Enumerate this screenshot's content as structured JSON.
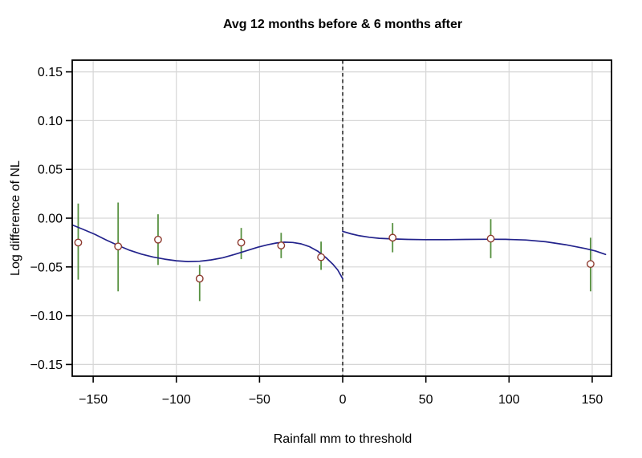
{
  "chart_data": {
    "type": "scatter",
    "title": "Avg 12 months before & 6 months after",
    "xlabel": "Rainfall mm to threshold",
    "ylabel": "Log difference of NL",
    "xlim": [
      -162.6,
      161.6
    ],
    "ylim": [
      -0.162,
      0.162
    ],
    "grid": true,
    "legend": "none",
    "x_ticks": [
      {
        "v": -150,
        "label": "−150"
      },
      {
        "v": -100,
        "label": "−100"
      },
      {
        "v": -50,
        "label": "−50"
      },
      {
        "v": 0,
        "label": "0"
      },
      {
        "v": 50,
        "label": "50"
      },
      {
        "v": 100,
        "label": "100"
      },
      {
        "v": 150,
        "label": "150"
      }
    ],
    "y_ticks": [
      {
        "v": 0.15,
        "label": "0.15"
      },
      {
        "v": 0.1,
        "label": "0.10"
      },
      {
        "v": 0.05,
        "label": "0.05"
      },
      {
        "v": 0.0,
        "label": "0.00"
      },
      {
        "v": -0.05,
        "label": "−0.05"
      },
      {
        "v": -0.1,
        "label": "−0.10"
      },
      {
        "v": -0.15,
        "label": "−0.15"
      }
    ],
    "threshold_x": 0,
    "points": [
      {
        "x": -159,
        "y": -0.025,
        "ci_low": -0.063,
        "ci_high": 0.015
      },
      {
        "x": -135,
        "y": -0.029,
        "ci_low": -0.075,
        "ci_high": 0.016
      },
      {
        "x": -111,
        "y": -0.022,
        "ci_low": -0.048,
        "ci_high": 0.004
      },
      {
        "x": -86,
        "y": -0.062,
        "ci_low": -0.085,
        "ci_high": -0.048
      },
      {
        "x": -61,
        "y": -0.025,
        "ci_low": -0.042,
        "ci_high": -0.01
      },
      {
        "x": -37,
        "y": -0.028,
        "ci_low": -0.041,
        "ci_high": -0.015
      },
      {
        "x": -13,
        "y": -0.04,
        "ci_low": -0.053,
        "ci_high": -0.024
      },
      {
        "x": 30,
        "y": -0.02,
        "ci_low": -0.035,
        "ci_high": -0.005
      },
      {
        "x": 89,
        "y": -0.021,
        "ci_low": -0.041,
        "ci_high": -0.001
      },
      {
        "x": 149,
        "y": -0.047,
        "ci_low": -0.075,
        "ci_high": -0.02
      }
    ],
    "fit_curves": [
      {
        "name": "fit-left-of-threshold",
        "xy": [
          [
            -162.5,
            -0.007
          ],
          [
            -156,
            -0.0115
          ],
          [
            -149,
            -0.0165
          ],
          [
            -142,
            -0.0225
          ],
          [
            -135,
            -0.028
          ],
          [
            -128,
            -0.033
          ],
          [
            -121,
            -0.0368
          ],
          [
            -114,
            -0.0398
          ],
          [
            -107,
            -0.042
          ],
          [
            -100,
            -0.0437
          ],
          [
            -93,
            -0.0445
          ],
          [
            -86,
            -0.0442
          ],
          [
            -79,
            -0.0428
          ],
          [
            -72,
            -0.0405
          ],
          [
            -65,
            -0.0372
          ],
          [
            -58,
            -0.0335
          ],
          [
            -51,
            -0.0298
          ],
          [
            -45,
            -0.0272
          ],
          [
            -40,
            -0.0255
          ],
          [
            -35,
            -0.0246
          ],
          [
            -30,
            -0.0249
          ],
          [
            -25,
            -0.0263
          ],
          [
            -20,
            -0.0292
          ],
          [
            -15,
            -0.0338
          ],
          [
            -10,
            -0.0405
          ],
          [
            -6,
            -0.047
          ],
          [
            -3,
            -0.053
          ],
          [
            0,
            -0.062
          ]
        ]
      },
      {
        "name": "fit-right-of-threshold",
        "xy": [
          [
            0,
            -0.0135
          ],
          [
            5,
            -0.016
          ],
          [
            10,
            -0.018
          ],
          [
            16,
            -0.0196
          ],
          [
            22,
            -0.0206
          ],
          [
            30,
            -0.0213
          ],
          [
            40,
            -0.0218
          ],
          [
            50,
            -0.022
          ],
          [
            62,
            -0.022
          ],
          [
            74,
            -0.0218
          ],
          [
            86,
            -0.0216
          ],
          [
            98,
            -0.0217
          ],
          [
            110,
            -0.0224
          ],
          [
            122,
            -0.0242
          ],
          [
            134,
            -0.0272
          ],
          [
            146,
            -0.0312
          ],
          [
            152,
            -0.0336
          ],
          [
            158,
            -0.0372
          ]
        ]
      }
    ],
    "colors": {
      "curve": "#23238c",
      "error_bar": "#579140",
      "point_stroke": "#8e3b30",
      "point_fill": "#ffffff",
      "grid": "#d6d6d6",
      "threshold": "#111111",
      "axis": "#000000",
      "background": "#ffffff"
    }
  }
}
